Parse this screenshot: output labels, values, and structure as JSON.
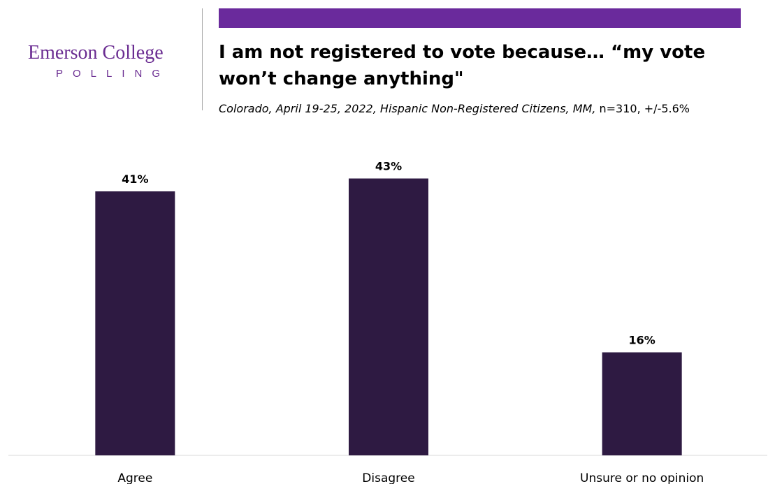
{
  "logo": {
    "title": "Emerson College",
    "subtitle": "POLLING"
  },
  "header": {
    "title": "I am not registered to vote because… “my vote won’t change anything\"",
    "subtitle_italic": "Colorado, April 19-25, 2022, Hispanic Non-Registered Citizens, MM,",
    "subtitle_plain": " n=310, +/-5.6%"
  },
  "colors": {
    "brand": "#6a2c91",
    "accent_bar": "#6a2a9c",
    "bar": "#2e1a42",
    "axis": "#d9d9d9"
  },
  "chart_data": {
    "type": "bar",
    "categories": [
      "Agree",
      "Disagree",
      "Unsure or no opinion"
    ],
    "values": [
      41,
      43,
      16
    ],
    "data_labels": [
      "41%",
      "43%",
      "16%"
    ],
    "ylim": [
      0,
      50
    ],
    "grid": false,
    "legend": "none"
  }
}
